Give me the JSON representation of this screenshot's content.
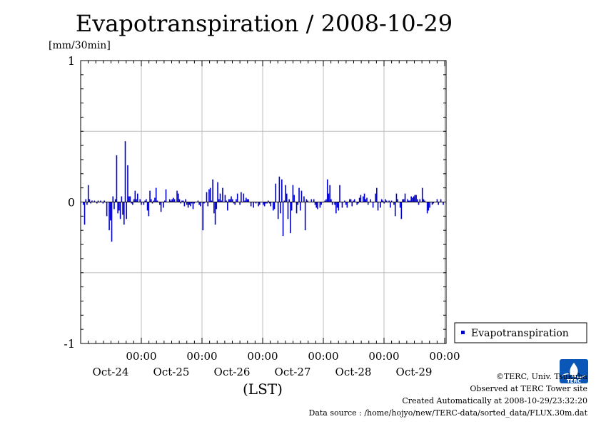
{
  "chart_data": {
    "type": "bar",
    "title": "Evapotranspiration / 2008-10-29",
    "ylabel": "[mm/30min]",
    "xlabel": "(LST)",
    "ylim": [
      -1,
      1
    ],
    "yticks": [
      "1",
      "0",
      "-1"
    ],
    "xticks": [
      {
        "time": "00:00",
        "date": "Oct-24"
      },
      {
        "time": "00:00",
        "date": "Oct-25"
      },
      {
        "time": "00:00",
        "date": "Oct-26"
      },
      {
        "time": "00:00",
        "date": "Oct-27"
      },
      {
        "time": "00:00",
        "date": "Oct-28"
      },
      {
        "time": "00:00",
        "date": "Oct-29"
      }
    ],
    "grid": true,
    "legend_position": "right",
    "series": [
      {
        "name": "Evapotranspiration",
        "color": "#0000cc",
        "values": [
          -0.02,
          -0.16,
          0.02,
          -0.02,
          0.12,
          0.02,
          -0.01,
          0.01,
          0.0,
          0.01,
          0.0,
          -0.01,
          0.01,
          0.0,
          0.01,
          0.0,
          -0.01,
          0.01,
          0.0,
          -0.1,
          0.0,
          -0.2,
          -0.13,
          -0.28,
          0.04,
          -0.05,
          0.02,
          0.33,
          -0.08,
          -0.06,
          -0.12,
          0.04,
          -0.09,
          -0.16,
          0.43,
          -0.12,
          0.26,
          0.04,
          0.04,
          -0.01,
          -0.02,
          0.02,
          0.08,
          0.02,
          0.06,
          0.0,
          0.02,
          -0.02,
          0.0,
          -0.02,
          0.01,
          0.02,
          -0.06,
          -0.1,
          0.08,
          0.02,
          -0.01,
          0.01,
          0.03,
          0.1,
          0.01,
          0.0,
          -0.02,
          -0.07,
          0.0,
          -0.04,
          0.01,
          0.09,
          0.0,
          0.0,
          0.02,
          0.01,
          0.02,
          0.03,
          0.02,
          0.0,
          0.08,
          0.06,
          0.02,
          -0.01,
          0.01,
          0.01,
          -0.03,
          0.02,
          -0.02,
          -0.04,
          -0.02,
          -0.03,
          -0.01,
          -0.05,
          -0.01,
          0.0,
          0.0,
          0.01,
          -0.02,
          -0.03,
          0.0,
          -0.2,
          -0.01,
          0.0,
          0.07,
          -0.03,
          0.09,
          0.1,
          0.01,
          0.16,
          -0.08,
          -0.16,
          -0.05,
          0.14,
          0.02,
          0.06,
          0.01,
          0.1,
          0.0,
          0.05,
          0.01,
          -0.06,
          0.02,
          0.02,
          0.04,
          0.02,
          -0.01,
          -0.02,
          0.02,
          0.06,
          0.0,
          -0.02,
          0.07,
          0.0,
          0.06,
          0.01,
          0.03,
          0.02,
          0.02,
          0.0,
          -0.03,
          0.0,
          -0.04,
          0.0,
          -0.01,
          0.0,
          -0.03,
          -0.02,
          0.0,
          0.0,
          -0.02,
          -0.03,
          -0.01,
          -0.01,
          0.01,
          -0.01,
          -0.03,
          0.0,
          -0.06,
          -0.05,
          0.13,
          0.0,
          -0.12,
          0.18,
          -0.08,
          0.16,
          -0.24,
          0.01,
          0.12,
          0.06,
          -0.12,
          0.02,
          -0.22,
          -0.06,
          0.12,
          0.05,
          0.0,
          -0.08,
          -0.02,
          0.1,
          -0.06,
          0.08,
          0.0,
          0.04,
          -0.2,
          0.02,
          0.01,
          0.0,
          0.0,
          0.02,
          0.0,
          0.02,
          -0.02,
          -0.04,
          -0.05,
          0.0,
          -0.04,
          -0.02,
          0.0,
          0.0,
          0.01,
          0.02,
          0.16,
          0.06,
          0.12,
          0.02,
          -0.02,
          0.0,
          -0.02,
          -0.08,
          -0.04,
          -0.06,
          0.12,
          0.0,
          -0.04,
          0.0,
          0.01,
          -0.02,
          -0.04,
          0.0,
          0.02,
          0.02,
          -0.03,
          0.01,
          0.02,
          0.0,
          -0.02,
          -0.01,
          0.03,
          0.05,
          0.0,
          0.04,
          0.06,
          0.02,
          0.03,
          -0.02,
          0.0,
          0.02,
          0.0,
          -0.04,
          0.0,
          0.06,
          0.1,
          -0.06,
          0.0,
          -0.04,
          0.02,
          0.01,
          -0.01,
          0.02,
          0.01,
          0.0,
          0.01,
          -0.04,
          0.01,
          0.0,
          -0.02,
          -0.1,
          0.06,
          0.02,
          0.0,
          -0.04,
          -0.12,
          0.02,
          0.02,
          0.06,
          0.0,
          0.02,
          0.01,
          0.01,
          0.04,
          0.03,
          0.04,
          0.05,
          0.05,
          0.02,
          -0.02,
          0.02,
          0.0,
          0.1,
          0.02,
          0.01,
          0.0,
          -0.08,
          -0.06,
          -0.04,
          0.0,
          -0.02,
          -0.01,
          0.0,
          0.0,
          0.02,
          -0.02,
          0.0,
          0.02,
          0.0,
          -0.02
        ]
      }
    ]
  },
  "credits": {
    "copyright": "©TERC, Univ. Tsukuba",
    "site": "Observed at TERC Tower site",
    "created": "Created Automatically at 2008-10-29/23:32:20",
    "source": "Data source : /home/hojyo/new/TERC-data/sorted_data/FLUX.30m.dat"
  },
  "logo": {
    "text": "TERC",
    "color": "#0a57b8"
  }
}
